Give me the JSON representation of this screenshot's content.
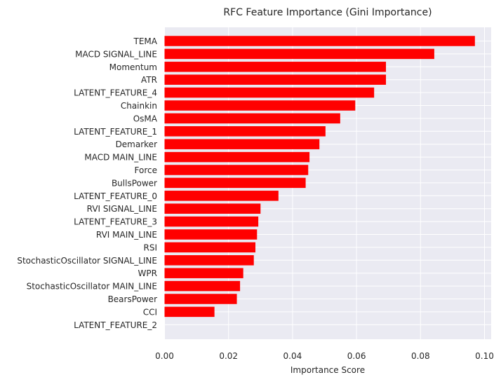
{
  "chart_data": {
    "type": "bar",
    "orientation": "horizontal",
    "title": "RFC Feature Importance (Gini Importance)",
    "xlabel": "Importance Score",
    "ylabel": "",
    "xlim": [
      0,
      0.101
    ],
    "xticks": [
      "0.00",
      "0.02",
      "0.04",
      "0.06",
      "0.08",
      "0.10"
    ],
    "grid": true,
    "categories": [
      "TEMA",
      "MACD SIGNAL_LINE",
      "Momentum",
      "ATR",
      "LATENT_FEATURE_4",
      "Chainkin",
      "OsMA",
      "LATENT_FEATURE_1",
      "Demarker",
      "MACD MAIN_LINE",
      "Force",
      "BullsPower",
      "LATENT_FEATURE_0",
      "RVI SIGNAL_LINE",
      "LATENT_FEATURE_3",
      "RVI MAIN_LINE",
      "RSI",
      "StochasticOscillator SIGNAL_LINE",
      "WPR",
      "StochasticOscillator MAIN_LINE",
      "BearsPower",
      "CCI",
      "LATENT_FEATURE_2"
    ],
    "values": [
      0.097,
      0.0843,
      0.0692,
      0.0692,
      0.0655,
      0.0596,
      0.0549,
      0.0503,
      0.0484,
      0.0453,
      0.0449,
      0.0441,
      0.0356,
      0.03,
      0.0293,
      0.0289,
      0.0284,
      0.0279,
      0.0246,
      0.0236,
      0.0226,
      0.0156,
      0.0
    ],
    "colors": {
      "bar": "#ff0000",
      "plot_background": "#eaeaf2",
      "grid": "#ffffff",
      "text": "#262626"
    }
  }
}
